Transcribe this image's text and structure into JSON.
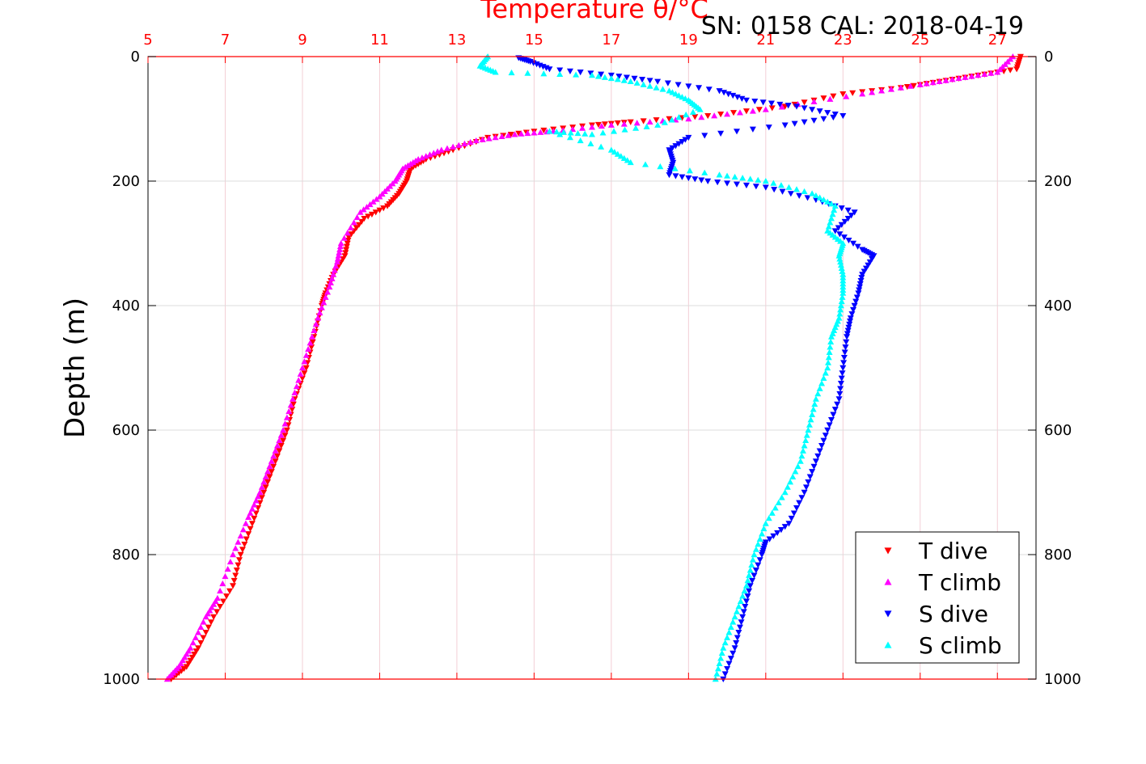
{
  "chart_data": {
    "type": "scatter",
    "title": "Temperature θ/°C",
    "annotation": "SN: 0158  CAL: 2018-04-19",
    "xlabel": "Temperature θ/°C",
    "ylabel": "Depth (m)",
    "xlim": [
      5,
      28
    ],
    "ylim": [
      0,
      1000
    ],
    "y_reversed": true,
    "x_axis_position": "top",
    "x_ticks": [
      5,
      7,
      9,
      11,
      13,
      15,
      17,
      19,
      21,
      23,
      25,
      27
    ],
    "y_ticks": [
      0,
      200,
      400,
      600,
      800,
      1000
    ],
    "grid": true,
    "legend_position": "bottom-right",
    "colors": {
      "axis_top": "#ff0000",
      "grid_x": "#f3cfd6",
      "grid_y": "#dcdcdc"
    },
    "series": [
      {
        "name": "T dive",
        "marker": "triangle-down",
        "color": "#ff0000",
        "size": 4.0,
        "points": [
          [
            27.6,
            0
          ],
          [
            27.5,
            20
          ],
          [
            26.5,
            30
          ],
          [
            25.5,
            40
          ],
          [
            24.5,
            50
          ],
          [
            23.0,
            60
          ],
          [
            21.5,
            80
          ],
          [
            19.5,
            95
          ],
          [
            17.5,
            105
          ],
          [
            16.5,
            110
          ],
          [
            15.0,
            120
          ],
          [
            13.8,
            130
          ],
          [
            12.9,
            150
          ],
          [
            12.2,
            165
          ],
          [
            11.8,
            180
          ],
          [
            11.7,
            200
          ],
          [
            11.5,
            220
          ],
          [
            11.2,
            240
          ],
          [
            10.6,
            260
          ],
          [
            10.2,
            290
          ],
          [
            10.1,
            320
          ],
          [
            9.8,
            350
          ],
          [
            9.6,
            380
          ],
          [
            9.5,
            400
          ],
          [
            9.3,
            450
          ],
          [
            9.1,
            500
          ],
          [
            8.8,
            550
          ],
          [
            8.6,
            600
          ],
          [
            8.3,
            650
          ],
          [
            8.0,
            700
          ],
          [
            7.7,
            750
          ],
          [
            7.4,
            800
          ],
          [
            7.2,
            850
          ],
          [
            6.7,
            900
          ],
          [
            6.3,
            950
          ],
          [
            6.0,
            980
          ],
          [
            5.6,
            1000
          ]
        ]
      },
      {
        "name": "T climb",
        "marker": "triangle-up",
        "color": "#ff00ff",
        "size": 4.0,
        "points": [
          [
            27.4,
            0
          ],
          [
            27.0,
            25
          ],
          [
            26.0,
            35
          ],
          [
            25.0,
            45
          ],
          [
            23.5,
            60
          ],
          [
            21.0,
            85
          ],
          [
            19.0,
            100
          ],
          [
            17.0,
            110
          ],
          [
            15.5,
            120
          ],
          [
            14.5,
            125
          ],
          [
            13.5,
            135
          ],
          [
            12.6,
            150
          ],
          [
            12.0,
            165
          ],
          [
            11.6,
            180
          ],
          [
            11.4,
            200
          ],
          [
            11.0,
            225
          ],
          [
            10.5,
            250
          ],
          [
            10.0,
            300
          ],
          [
            9.9,
            330
          ],
          [
            9.7,
            370
          ],
          [
            9.4,
            420
          ],
          [
            9.1,
            480
          ],
          [
            8.8,
            540
          ],
          [
            8.5,
            600
          ],
          [
            8.2,
            650
          ],
          [
            7.9,
            700
          ],
          [
            7.6,
            740
          ],
          [
            7.2,
            800
          ],
          [
            6.8,
            870
          ],
          [
            6.5,
            900
          ],
          [
            6.1,
            950
          ],
          [
            5.8,
            980
          ],
          [
            5.5,
            1000
          ]
        ]
      },
      {
        "name": "S dive",
        "marker": "triangle-down",
        "color": "#0000ff",
        "size": 4.0,
        "points": [
          [
            14.6,
            2
          ],
          [
            14.9,
            8
          ],
          [
            15.4,
            20
          ],
          [
            17.0,
            30
          ],
          [
            18.2,
            40
          ],
          [
            19.8,
            55
          ],
          [
            20.5,
            70
          ],
          [
            21.8,
            80
          ],
          [
            23.0,
            95
          ],
          [
            21.5,
            110
          ],
          [
            19.0,
            130
          ],
          [
            18.5,
            150
          ],
          [
            18.6,
            170
          ],
          [
            18.5,
            190
          ],
          [
            19.5,
            200
          ],
          [
            21.0,
            210
          ],
          [
            22.3,
            230
          ],
          [
            23.3,
            250
          ],
          [
            22.8,
            280
          ],
          [
            23.5,
            310
          ],
          [
            23.8,
            320
          ],
          [
            23.5,
            350
          ],
          [
            23.4,
            380
          ],
          [
            23.2,
            420
          ],
          [
            23.1,
            450
          ],
          [
            23.0,
            500
          ],
          [
            22.9,
            550
          ],
          [
            22.6,
            600
          ],
          [
            22.3,
            650
          ],
          [
            22.0,
            700
          ],
          [
            21.6,
            750
          ],
          [
            21.0,
            780
          ],
          [
            20.9,
            800
          ],
          [
            20.6,
            850
          ],
          [
            20.4,
            900
          ],
          [
            20.2,
            950
          ],
          [
            19.9,
            1000
          ]
        ]
      },
      {
        "name": "S climb",
        "marker": "triangle-up",
        "color": "#00ffff",
        "size": 4.0,
        "points": [
          [
            13.8,
            0
          ],
          [
            13.6,
            15
          ],
          [
            14.0,
            25
          ],
          [
            16.5,
            30
          ],
          [
            17.5,
            40
          ],
          [
            18.5,
            55
          ],
          [
            19.0,
            70
          ],
          [
            19.3,
            85
          ],
          [
            18.2,
            110
          ],
          [
            16.5,
            125
          ],
          [
            15.4,
            120
          ],
          [
            17.0,
            150
          ],
          [
            17.5,
            170
          ],
          [
            19.8,
            190
          ],
          [
            21.0,
            200
          ],
          [
            22.2,
            220
          ],
          [
            22.8,
            240
          ],
          [
            22.6,
            280
          ],
          [
            23.0,
            300
          ],
          [
            22.9,
            320
          ],
          [
            23.0,
            350
          ],
          [
            23.0,
            380
          ],
          [
            22.9,
            420
          ],
          [
            22.7,
            450
          ],
          [
            22.6,
            500
          ],
          [
            22.3,
            550
          ],
          [
            22.1,
            600
          ],
          [
            21.9,
            650
          ],
          [
            21.5,
            700
          ],
          [
            21.0,
            750
          ],
          [
            20.7,
            800
          ],
          [
            20.5,
            850
          ],
          [
            20.2,
            900
          ],
          [
            19.9,
            950
          ],
          [
            19.7,
            1000
          ]
        ]
      }
    ]
  }
}
